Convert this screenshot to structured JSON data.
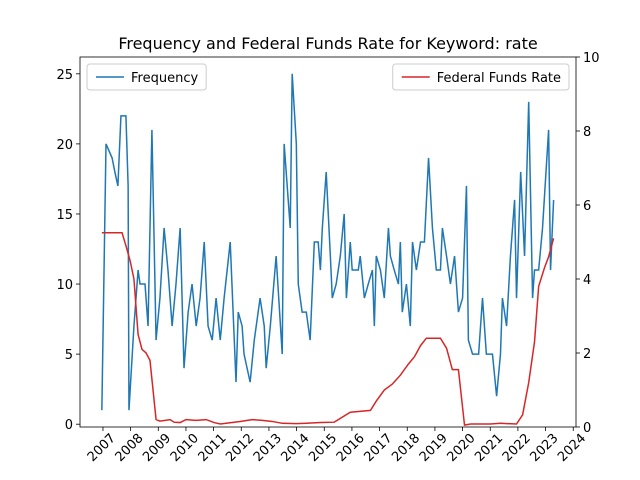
{
  "chart_data": {
    "type": "line",
    "title": "Frequency and Federal Funds Rate for Keyword: rate",
    "xlim": [
      2006.17,
      2024.1
    ],
    "xticks": [
      2007,
      2008,
      2009,
      2010,
      2011,
      2012,
      2013,
      2014,
      2015,
      2016,
      2017,
      2018,
      2019,
      2020,
      2021,
      2022,
      2023,
      2024
    ],
    "ylim": [
      -0.2,
      26.2
    ],
    "yticks": [
      0,
      5,
      10,
      15,
      20,
      25
    ],
    "y2lim": [
      0,
      10
    ],
    "y2ticks": [
      0,
      2,
      4,
      6,
      8,
      10
    ],
    "series": [
      {
        "name": "Frequency",
        "color": "#1f77b4",
        "axis": "y",
        "legend": "upper left",
        "x": [
          2006.96,
          2007.11,
          2007.33,
          2007.43,
          2007.54,
          2007.65,
          2007.83,
          2007.91,
          2007.94,
          2008.12,
          2008.27,
          2008.34,
          2008.52,
          2008.63,
          2008.77,
          2008.92,
          2009.06,
          2009.21,
          2009.35,
          2009.5,
          2009.64,
          2009.79,
          2009.93,
          2010.08,
          2010.22,
          2010.37,
          2010.51,
          2010.66,
          2010.8,
          2010.95,
          2011.09,
          2011.24,
          2011.38,
          2011.6,
          2011.81,
          2011.89,
          2012.03,
          2012.1,
          2012.32,
          2012.47,
          2012.68,
          2012.83,
          2012.9,
          2013.05,
          2013.26,
          2013.48,
          2013.55,
          2013.77,
          2013.84,
          2013.99,
          2014.06,
          2014.2,
          2014.35,
          2014.49,
          2014.64,
          2014.78,
          2014.86,
          2014.93,
          2015.07,
          2015.22,
          2015.29,
          2015.43,
          2015.58,
          2015.72,
          2015.8,
          2015.94,
          2016.01,
          2016.23,
          2016.3,
          2016.45,
          2016.59,
          2016.74,
          2016.81,
          2016.88,
          2017.03,
          2017.17,
          2017.32,
          2017.39,
          2017.53,
          2017.68,
          2017.75,
          2017.82,
          2017.97,
          2018.11,
          2018.19,
          2018.33,
          2018.48,
          2018.62,
          2018.77,
          2018.91,
          2019.05,
          2019.2,
          2019.27,
          2019.42,
          2019.56,
          2019.71,
          2019.85,
          2020.0,
          2020.14,
          2020.21,
          2020.36,
          2020.58,
          2020.72,
          2020.86,
          2021.08,
          2021.23,
          2021.37,
          2021.44,
          2021.59,
          2021.73,
          2021.88,
          2021.95,
          2022.1,
          2022.24,
          2022.39,
          2022.53,
          2022.6,
          2022.75,
          2022.89,
          2023.11,
          2023.18,
          2023.29
        ],
        "values": [
          1,
          20,
          19,
          18,
          17,
          22,
          22,
          17,
          1,
          7,
          11,
          10,
          10,
          7,
          21,
          6,
          9,
          14,
          11,
          7,
          10,
          14,
          4,
          8,
          10,
          7,
          9,
          13,
          7,
          6,
          9,
          6,
          9,
          13,
          3,
          8,
          7,
          5,
          3,
          6,
          9,
          7,
          4,
          7,
          12,
          5,
          20,
          14,
          25,
          20,
          10,
          8,
          8,
          6,
          13,
          13,
          11,
          14,
          18,
          12,
          9,
          10,
          12,
          15,
          9,
          13,
          11,
          11,
          12,
          9,
          10,
          11,
          7,
          12,
          11,
          9,
          14,
          12,
          11,
          10,
          13,
          8,
          10,
          7,
          13,
          11,
          13,
          13,
          19,
          14,
          11,
          11,
          14,
          12,
          10,
          12,
          8,
          9,
          17,
          6,
          5,
          5,
          9,
          5,
          5,
          2,
          5,
          9,
          7,
          12,
          16,
          9,
          18,
          12,
          23,
          9,
          11,
          11,
          14,
          21,
          11,
          16
        ]
      },
      {
        "name": "Federal Funds Rate",
        "color": "#d62728",
        "axis": "y2",
        "legend": "upper right",
        "x": [
          2006.96,
          2007.69,
          2007.83,
          2007.98,
          2008.12,
          2008.27,
          2008.41,
          2008.56,
          2008.7,
          2008.81,
          2008.92,
          2009.06,
          2009.43,
          2009.57,
          2009.79,
          2010.0,
          2010.37,
          2010.73,
          2011.02,
          2011.24,
          2011.45,
          2011.96,
          2012.39,
          2012.76,
          2013.12,
          2013.48,
          2013.99,
          2014.35,
          2014.86,
          2015.36,
          2015.94,
          2016.67,
          2016.88,
          2017.17,
          2017.46,
          2017.75,
          2018.04,
          2018.26,
          2018.48,
          2018.69,
          2018.98,
          2019.2,
          2019.42,
          2019.63,
          2019.85,
          2020.07,
          2020.29,
          2021.01,
          2021.37,
          2021.95,
          2022.17,
          2022.39,
          2022.6,
          2022.75,
          2022.96,
          2023.11,
          2023.29
        ],
        "values": [
          5.25,
          5.25,
          4.9,
          4.5,
          4.0,
          2.5,
          2.1,
          2.0,
          1.8,
          1.0,
          0.2,
          0.16,
          0.2,
          0.13,
          0.12,
          0.2,
          0.18,
          0.2,
          0.12,
          0.08,
          0.1,
          0.15,
          0.2,
          0.18,
          0.15,
          0.1,
          0.09,
          0.1,
          0.12,
          0.13,
          0.4,
          0.45,
          0.7,
          1.0,
          1.16,
          1.4,
          1.7,
          1.9,
          2.2,
          2.4,
          2.4,
          2.4,
          2.13,
          1.55,
          1.55,
          0.05,
          0.08,
          0.08,
          0.1,
          0.08,
          0.33,
          1.2,
          2.3,
          3.8,
          4.3,
          4.6,
          5.1
        ]
      }
    ]
  }
}
